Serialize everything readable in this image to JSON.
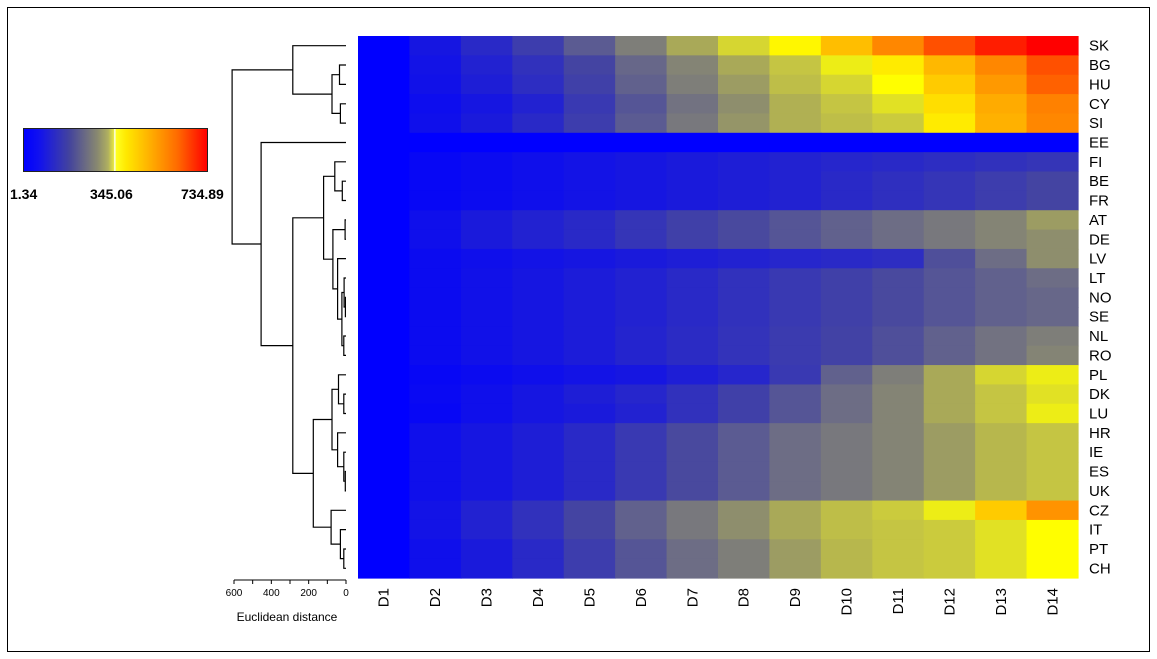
{
  "chart_data": {
    "type": "heatmap",
    "columns": [
      "D1",
      "D2",
      "D3",
      "D4",
      "D5",
      "D6",
      "D7",
      "D8",
      "D9",
      "D10",
      "D11",
      "D12",
      "D13",
      "D14"
    ],
    "rows": [
      "SK",
      "BG",
      "HU",
      "CY",
      "SI",
      "EE",
      "FI",
      "BE",
      "FR",
      "AT",
      "DE",
      "LV",
      "LT",
      "NO",
      "SE",
      "NL",
      "RO",
      "PL",
      "DK",
      "LU",
      "HR",
      "IE",
      "ES",
      "UK",
      "CZ",
      "IT",
      "PT",
      "CH"
    ],
    "values": [
      [
        1.34,
        60,
        110,
        160,
        220,
        280,
        320,
        350,
        380,
        470,
        560,
        640,
        700,
        734.89
      ],
      [
        1.34,
        50,
        90,
        130,
        180,
        240,
        290,
        320,
        340,
        360,
        400,
        480,
        560,
        640
      ],
      [
        1.34,
        45,
        80,
        120,
        170,
        230,
        280,
        310,
        335,
        350,
        370,
        450,
        530,
        620
      ],
      [
        1.34,
        35,
        60,
        90,
        150,
        210,
        260,
        300,
        325,
        340,
        355,
        420,
        500,
        570
      ],
      [
        1.34,
        40,
        70,
        110,
        160,
        220,
        270,
        305,
        325,
        335,
        345,
        400,
        490,
        560
      ],
      [
        1.34,
        1.34,
        1.34,
        1.34,
        1.34,
        1.34,
        1.34,
        1.34,
        1.34,
        1.34,
        1.34,
        1.34,
        1.34,
        1.34
      ],
      [
        1.34,
        20,
        30,
        40,
        50,
        60,
        70,
        80,
        90,
        100,
        110,
        120,
        130,
        140
      ],
      [
        1.34,
        20,
        30,
        40,
        50,
        60,
        70,
        80,
        90,
        110,
        125,
        140,
        160,
        180
      ],
      [
        1.34,
        20,
        30,
        40,
        50,
        60,
        70,
        80,
        90,
        110,
        125,
        140,
        160,
        180
      ],
      [
        1.34,
        40,
        70,
        90,
        110,
        140,
        170,
        190,
        210,
        230,
        250,
        270,
        290,
        310
      ],
      [
        1.34,
        40,
        70,
        90,
        110,
        140,
        170,
        190,
        210,
        230,
        250,
        270,
        290,
        300
      ],
      [
        1.34,
        30,
        40,
        50,
        60,
        70,
        80,
        90,
        100,
        110,
        120,
        200,
        250,
        300
      ],
      [
        1.34,
        30,
        45,
        60,
        75,
        90,
        110,
        130,
        150,
        170,
        190,
        210,
        230,
        250
      ],
      [
        1.34,
        30,
        45,
        60,
        75,
        90,
        110,
        130,
        150,
        170,
        190,
        210,
        230,
        240
      ],
      [
        1.34,
        30,
        45,
        60,
        75,
        90,
        110,
        130,
        150,
        170,
        190,
        210,
        230,
        240
      ],
      [
        1.34,
        30,
        45,
        60,
        75,
        95,
        115,
        135,
        155,
        175,
        200,
        230,
        260,
        280
      ],
      [
        1.34,
        30,
        45,
        60,
        75,
        95,
        115,
        135,
        155,
        175,
        200,
        230,
        260,
        290
      ],
      [
        1.34,
        20,
        30,
        40,
        50,
        60,
        80,
        100,
        150,
        230,
        280,
        320,
        350,
        360
      ],
      [
        1.34,
        25,
        40,
        60,
        80,
        100,
        130,
        170,
        210,
        250,
        290,
        320,
        340,
        355
      ],
      [
        1.34,
        20,
        40,
        60,
        70,
        90,
        130,
        170,
        210,
        250,
        290,
        320,
        340,
        360
      ],
      [
        1.34,
        40,
        60,
        80,
        110,
        150,
        190,
        220,
        250,
        270,
        290,
        310,
        330,
        340
      ],
      [
        1.34,
        40,
        60,
        80,
        110,
        150,
        190,
        220,
        250,
        270,
        290,
        310,
        330,
        340
      ],
      [
        1.34,
        40,
        60,
        80,
        110,
        150,
        190,
        220,
        250,
        270,
        290,
        310,
        330,
        340
      ],
      [
        1.34,
        40,
        60,
        80,
        110,
        150,
        190,
        220,
        250,
        270,
        290,
        310,
        330,
        340
      ],
      [
        1.34,
        50,
        90,
        130,
        180,
        230,
        270,
        300,
        320,
        335,
        345,
        360,
        450,
        540
      ],
      [
        1.34,
        50,
        90,
        130,
        180,
        230,
        270,
        300,
        320,
        335,
        340,
        345,
        355,
        370
      ],
      [
        1.34,
        40,
        70,
        110,
        160,
        210,
        250,
        280,
        310,
        330,
        340,
        345,
        355,
        370
      ],
      [
        1.34,
        40,
        70,
        110,
        160,
        210,
        250,
        280,
        310,
        330,
        340,
        345,
        355,
        370
      ]
    ],
    "legend": {
      "min_label": "1.34",
      "mid_label": "345.06",
      "max_label": "734.89",
      "min": 1.34,
      "mid": 345.06,
      "max": 734.89,
      "colors": [
        "#0000ff",
        "#808080",
        "#ffff00",
        "#ff8000",
        "#ff0000"
      ]
    },
    "dendrogram": {
      "axis_title": "Euclidean distance",
      "ticks": [
        "600",
        "400",
        "200",
        "0"
      ],
      "tick_values": [
        600,
        400,
        200,
        0
      ],
      "max_distance": 600
    }
  }
}
